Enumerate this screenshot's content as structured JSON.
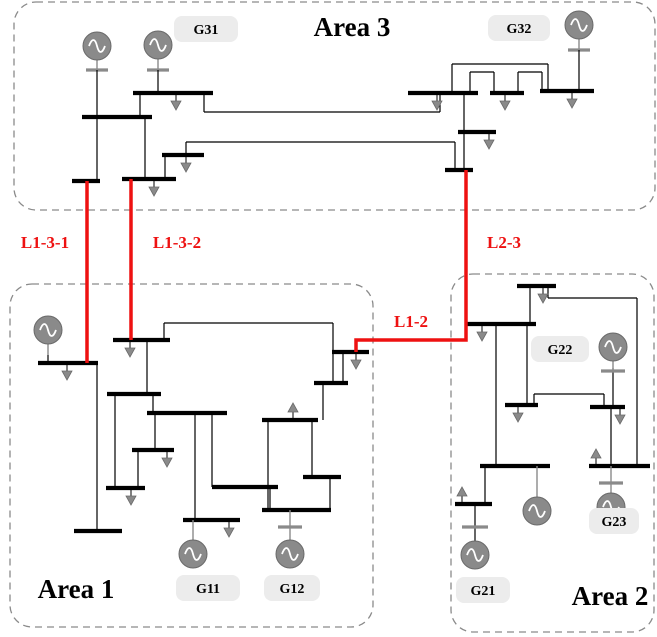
{
  "areas": [
    {
      "name": "Area 3"
    },
    {
      "name": "Area 1"
    },
    {
      "name": "Area 2"
    }
  ],
  "generators": [
    "G31",
    "G32",
    "G11",
    "G12",
    "G21",
    "G22",
    "G23"
  ],
  "tie_lines": [
    "L1-3-1",
    "L1-3-2",
    "L2-3",
    "L1-2"
  ],
  "colors": {
    "tie_line": "#ee1111",
    "bus": "#000000",
    "equipment": "#8a8a8a",
    "area_border": "#8a8a8a"
  }
}
